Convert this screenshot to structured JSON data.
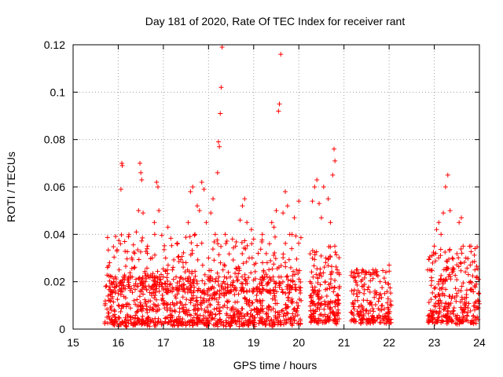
{
  "chart_data": {
    "type": "scatter",
    "title": "Day 181 of 2020, Rate Of TEC Index for receiver rant",
    "xlabel": "GPS time / hours",
    "ylabel": "ROTI / TECUs",
    "xlim": [
      15,
      24
    ],
    "ylim": [
      0,
      0.12
    ],
    "x_ticks": [
      15,
      16,
      17,
      18,
      19,
      20,
      21,
      22,
      23,
      24
    ],
    "x_tick_labels": [
      "15",
      "16",
      "17",
      "18",
      "19",
      "20",
      "21",
      "22",
      "23",
      "24"
    ],
    "y_ticks": [
      0,
      0.02,
      0.04,
      0.06,
      0.08,
      0.1,
      0.12
    ],
    "y_tick_labels": [
      "0",
      "0.02",
      "0.04",
      "0.06",
      "0.08",
      "0.1",
      "0.12"
    ],
    "grid": true,
    "legend": "none",
    "marker": "plus",
    "series": [
      {
        "name": "ROTI",
        "color": "#ff0000",
        "points": [
          [
            15.72,
            0.018
          ],
          [
            15.75,
            0.005
          ],
          [
            15.8,
            0.012
          ],
          [
            15.85,
            0.008
          ],
          [
            15.9,
            0.02
          ],
          [
            15.95,
            0.004
          ],
          [
            16.0,
            0.015
          ],
          [
            16.02,
            0.025
          ],
          [
            16.05,
            0.036
          ],
          [
            16.06,
            0.059
          ],
          [
            16.08,
            0.07
          ],
          [
            16.09,
            0.069
          ],
          [
            16.1,
            0.01
          ],
          [
            16.15,
            0.022
          ],
          [
            16.2,
            0.006
          ],
          [
            16.25,
            0.018
          ],
          [
            16.3,
            0.03
          ],
          [
            16.35,
            0.012
          ],
          [
            16.4,
            0.041
          ],
          [
            16.45,
            0.05
          ],
          [
            16.48,
            0.07
          ],
          [
            16.5,
            0.066
          ],
          [
            16.52,
            0.063
          ],
          [
            16.55,
            0.049
          ],
          [
            16.6,
            0.02
          ],
          [
            16.65,
            0.035
          ],
          [
            16.7,
            0.008
          ],
          [
            16.75,
            0.03
          ],
          [
            16.8,
            0.045
          ],
          [
            16.85,
            0.062
          ],
          [
            16.88,
            0.06
          ],
          [
            16.9,
            0.05
          ],
          [
            16.95,
            0.023
          ],
          [
            17.0,
            0.012
          ],
          [
            17.05,
            0.03
          ],
          [
            17.1,
            0.043
          ],
          [
            17.15,
            0.006
          ],
          [
            17.2,
            0.025
          ],
          [
            17.3,
            0.036
          ],
          [
            17.4,
            0.018
          ],
          [
            17.5,
            0.028
          ],
          [
            17.55,
            0.045
          ],
          [
            17.6,
            0.058
          ],
          [
            17.65,
            0.06
          ],
          [
            17.7,
            0.04
          ],
          [
            17.75,
            0.052
          ],
          [
            17.8,
            0.05
          ],
          [
            17.85,
            0.062
          ],
          [
            17.9,
            0.059
          ],
          [
            17.95,
            0.045
          ],
          [
            18.0,
            0.03
          ],
          [
            18.05,
            0.049
          ],
          [
            18.1,
            0.055
          ],
          [
            18.15,
            0.02
          ],
          [
            18.2,
            0.066
          ],
          [
            18.22,
            0.079
          ],
          [
            18.24,
            0.077
          ],
          [
            18.26,
            0.091
          ],
          [
            18.28,
            0.102
          ],
          [
            18.3,
            0.119
          ],
          [
            18.32,
            0.025
          ],
          [
            18.4,
            0.015
          ],
          [
            18.5,
            0.008
          ],
          [
            18.6,
            0.035
          ],
          [
            18.7,
            0.046
          ],
          [
            18.75,
            0.052
          ],
          [
            18.8,
            0.055
          ],
          [
            18.85,
            0.045
          ],
          [
            18.9,
            0.03
          ],
          [
            18.95,
            0.042
          ],
          [
            19.0,
            0.038
          ],
          [
            19.1,
            0.032
          ],
          [
            19.2,
            0.012
          ],
          [
            19.3,
            0.022
          ],
          [
            19.35,
            0.036
          ],
          [
            19.4,
            0.045
          ],
          [
            19.45,
            0.043
          ],
          [
            19.5,
            0.05
          ],
          [
            19.55,
            0.092
          ],
          [
            19.57,
            0.095
          ],
          [
            19.6,
            0.116
          ],
          [
            19.65,
            0.049
          ],
          [
            19.7,
            0.058
          ],
          [
            19.75,
            0.052
          ],
          [
            19.8,
            0.04
          ],
          [
            19.9,
            0.047
          ],
          [
            19.95,
            0.025
          ],
          [
            20.0,
            0.054
          ],
          [
            20.05,
            0.012
          ],
          [
            20.25,
            0.02
          ],
          [
            20.3,
            0.054
          ],
          [
            20.35,
            0.06
          ],
          [
            20.4,
            0.063
          ],
          [
            20.45,
            0.053
          ],
          [
            20.5,
            0.047
          ],
          [
            20.55,
            0.06
          ],
          [
            20.6,
            0.03
          ],
          [
            20.65,
            0.055
          ],
          [
            20.7,
            0.045
          ],
          [
            20.75,
            0.065
          ],
          [
            20.78,
            0.076
          ],
          [
            20.8,
            0.071
          ],
          [
            20.85,
            0.025
          ],
          [
            20.9,
            0.018
          ],
          [
            21.2,
            0.022
          ],
          [
            21.3,
            0.012
          ],
          [
            21.4,
            0.018
          ],
          [
            21.5,
            0.008
          ],
          [
            21.6,
            0.023
          ],
          [
            21.7,
            0.025
          ],
          [
            21.8,
            0.02
          ],
          [
            21.9,
            0.015
          ],
          [
            22.0,
            0.027
          ],
          [
            22.05,
            0.01
          ],
          [
            22.9,
            0.025
          ],
          [
            22.95,
            0.031
          ],
          [
            23.0,
            0.035
          ],
          [
            23.05,
            0.042
          ],
          [
            23.1,
            0.045
          ],
          [
            23.15,
            0.04
          ],
          [
            23.2,
            0.049
          ],
          [
            23.25,
            0.06
          ],
          [
            23.3,
            0.065
          ],
          [
            23.35,
            0.05
          ],
          [
            23.4,
            0.03
          ],
          [
            23.5,
            0.015
          ],
          [
            23.55,
            0.045
          ],
          [
            23.6,
            0.047
          ],
          [
            23.7,
            0.03
          ],
          [
            23.8,
            0.02
          ],
          [
            23.9,
            0.025
          ],
          [
            23.95,
            0.022
          ]
        ]
      }
    ],
    "dense_clusters": [
      {
        "x_range": [
          15.7,
          20.05
        ],
        "y_range": [
          0.001,
          0.022
        ],
        "count": 900
      },
      {
        "x_range": [
          15.75,
          20.05
        ],
        "y_range": [
          0.015,
          0.04
        ],
        "count": 350
      },
      {
        "x_range": [
          20.25,
          20.9
        ],
        "y_range": [
          0.002,
          0.035
        ],
        "count": 200
      },
      {
        "x_range": [
          21.15,
          22.05
        ],
        "y_range": [
          0.002,
          0.025
        ],
        "count": 200
      },
      {
        "x_range": [
          22.85,
          24.0
        ],
        "y_range": [
          0.002,
          0.035
        ],
        "count": 300
      }
    ]
  }
}
